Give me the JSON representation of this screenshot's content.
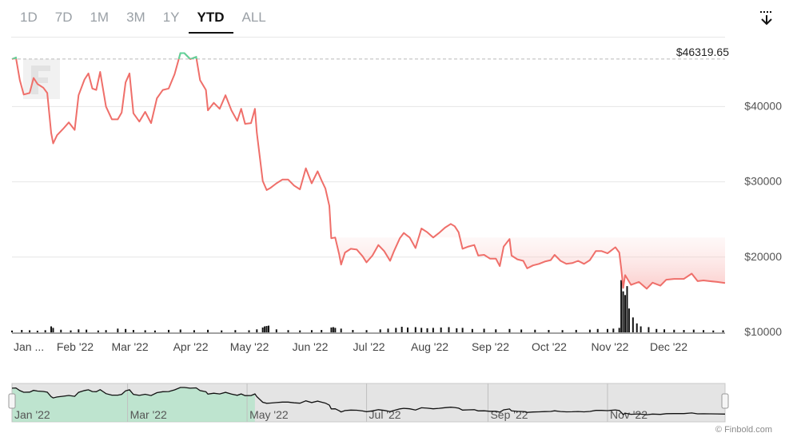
{
  "tabs": [
    {
      "label": "1D",
      "active": false
    },
    {
      "label": "7D",
      "active": false
    },
    {
      "label": "1M",
      "active": false
    },
    {
      "label": "3M",
      "active": false
    },
    {
      "label": "1Y",
      "active": false
    },
    {
      "label": "YTD",
      "active": true
    },
    {
      "label": "ALL",
      "active": false
    }
  ],
  "download_icon": "download-arrow-icon",
  "watermark_icon": "finbold-f-logo",
  "credit": "© Finbold.com",
  "colors": {
    "line_below": "#ef6f6a",
    "line_above": "#5fd39a",
    "volume": "#111111",
    "grid": "#e6e6e6",
    "navigator_bg": "#e4e4e4",
    "navigator_area": "#9ee3bd"
  },
  "chart_data": {
    "type": "line",
    "title": "",
    "ylabel": "",
    "y_ticks": [
      "$10000",
      "$20000",
      "$30000",
      "$40000"
    ],
    "ylim": [
      10000,
      48000
    ],
    "x_ticks": [
      "Jan ...",
      "Feb '22",
      "Mar '22",
      "Apr '22",
      "May '22",
      "Jun '22",
      "Jul '22",
      "Aug '22",
      "Sep '22",
      "Oct '22",
      "Nov '22",
      "Dec '22"
    ],
    "x_tick_dates": [
      "2022-01-01",
      "2022-02-01",
      "2022-03-01",
      "2022-04-01",
      "2022-05-01",
      "2022-06-01",
      "2022-07-01",
      "2022-08-01",
      "2022-09-01",
      "2022-10-01",
      "2022-11-01",
      "2022-12-01"
    ],
    "xlim": [
      "2022-01-01",
      "2022-12-31"
    ],
    "reference_label": "$46319.65",
    "reference_value": 46319.65,
    "grid": true,
    "series": [
      {
        "points": [
          [
            "2022-01-01",
            46300
          ],
          [
            "2022-01-03",
            46500
          ],
          [
            "2022-01-05",
            43500
          ],
          [
            "2022-01-07",
            41600
          ],
          [
            "2022-01-10",
            41800
          ],
          [
            "2022-01-12",
            43800
          ],
          [
            "2022-01-14",
            43000
          ],
          [
            "2022-01-17",
            42500
          ],
          [
            "2022-01-19",
            41800
          ],
          [
            "2022-01-21",
            36500
          ],
          [
            "2022-01-22",
            35100
          ],
          [
            "2022-01-24",
            36200
          ],
          [
            "2022-01-27",
            37000
          ],
          [
            "2022-01-30",
            37900
          ],
          [
            "2022-02-02",
            36900
          ],
          [
            "2022-02-04",
            41500
          ],
          [
            "2022-02-07",
            43600
          ],
          [
            "2022-02-09",
            44400
          ],
          [
            "2022-02-11",
            42400
          ],
          [
            "2022-02-13",
            42200
          ],
          [
            "2022-02-15",
            44600
          ],
          [
            "2022-02-18",
            40000
          ],
          [
            "2022-02-21",
            38300
          ],
          [
            "2022-02-24",
            38300
          ],
          [
            "2022-02-26",
            39200
          ],
          [
            "2022-02-28",
            43200
          ],
          [
            "2022-03-02",
            44400
          ],
          [
            "2022-03-04",
            39100
          ],
          [
            "2022-03-07",
            38000
          ],
          [
            "2022-03-10",
            39300
          ],
          [
            "2022-03-13",
            37800
          ],
          [
            "2022-03-16",
            41100
          ],
          [
            "2022-03-19",
            42200
          ],
          [
            "2022-03-22",
            42400
          ],
          [
            "2022-03-25",
            44300
          ],
          [
            "2022-03-28",
            47100
          ],
          [
            "2022-03-30",
            47100
          ],
          [
            "2022-04-02",
            46300
          ],
          [
            "2022-04-05",
            46600
          ],
          [
            "2022-04-07",
            43500
          ],
          [
            "2022-04-10",
            42200
          ],
          [
            "2022-04-11",
            39500
          ],
          [
            "2022-04-14",
            40500
          ],
          [
            "2022-04-17",
            39700
          ],
          [
            "2022-04-20",
            41500
          ],
          [
            "2022-04-23",
            39500
          ],
          [
            "2022-04-26",
            38100
          ],
          [
            "2022-04-28",
            39700
          ],
          [
            "2022-04-30",
            37700
          ],
          [
            "2022-05-03",
            37800
          ],
          [
            "2022-05-05",
            39700
          ],
          [
            "2022-05-06",
            36500
          ],
          [
            "2022-05-09",
            30100
          ],
          [
            "2022-05-11",
            28900
          ],
          [
            "2022-05-13",
            29200
          ],
          [
            "2022-05-16",
            29800
          ],
          [
            "2022-05-19",
            30300
          ],
          [
            "2022-05-22",
            30300
          ],
          [
            "2022-05-25",
            29500
          ],
          [
            "2022-05-28",
            29000
          ],
          [
            "2022-05-31",
            31800
          ],
          [
            "2022-06-03",
            29800
          ],
          [
            "2022-06-06",
            31400
          ],
          [
            "2022-06-08",
            30200
          ],
          [
            "2022-06-10",
            29100
          ],
          [
            "2022-06-12",
            26800
          ],
          [
            "2022-06-13",
            22500
          ],
          [
            "2022-06-15",
            22600
          ],
          [
            "2022-06-17",
            20400
          ],
          [
            "2022-06-18",
            19000
          ],
          [
            "2022-06-20",
            20600
          ],
          [
            "2022-06-23",
            21100
          ],
          [
            "2022-06-26",
            21000
          ],
          [
            "2022-06-29",
            20100
          ],
          [
            "2022-07-01",
            19300
          ],
          [
            "2022-07-04",
            20200
          ],
          [
            "2022-07-07",
            21600
          ],
          [
            "2022-07-10",
            20800
          ],
          [
            "2022-07-13",
            19500
          ],
          [
            "2022-07-15",
            20800
          ],
          [
            "2022-07-18",
            22500
          ],
          [
            "2022-07-20",
            23200
          ],
          [
            "2022-07-23",
            22600
          ],
          [
            "2022-07-26",
            21200
          ],
          [
            "2022-07-29",
            23800
          ],
          [
            "2022-08-01",
            23300
          ],
          [
            "2022-08-04",
            22600
          ],
          [
            "2022-08-07",
            23200
          ],
          [
            "2022-08-10",
            23900
          ],
          [
            "2022-08-13",
            24400
          ],
          [
            "2022-08-15",
            24100
          ],
          [
            "2022-08-17",
            23300
          ],
          [
            "2022-08-19",
            21100
          ],
          [
            "2022-08-22",
            21400
          ],
          [
            "2022-08-25",
            21600
          ],
          [
            "2022-08-27",
            20200
          ],
          [
            "2022-08-30",
            20300
          ],
          [
            "2022-09-02",
            19800
          ],
          [
            "2022-09-05",
            19800
          ],
          [
            "2022-09-07",
            18800
          ],
          [
            "2022-09-09",
            21400
          ],
          [
            "2022-09-12",
            22400
          ],
          [
            "2022-09-13",
            20200
          ],
          [
            "2022-09-16",
            19700
          ],
          [
            "2022-09-19",
            19500
          ],
          [
            "2022-09-21",
            18500
          ],
          [
            "2022-09-24",
            18900
          ],
          [
            "2022-09-27",
            19100
          ],
          [
            "2022-09-30",
            19400
          ],
          [
            "2022-10-03",
            19600
          ],
          [
            "2022-10-05",
            20300
          ],
          [
            "2022-10-08",
            19500
          ],
          [
            "2022-10-11",
            19100
          ],
          [
            "2022-10-14",
            19200
          ],
          [
            "2022-10-17",
            19500
          ],
          [
            "2022-10-20",
            19100
          ],
          [
            "2022-10-23",
            19600
          ],
          [
            "2022-10-26",
            20800
          ],
          [
            "2022-10-29",
            20800
          ],
          [
            "2022-11-01",
            20500
          ],
          [
            "2022-11-05",
            21300
          ],
          [
            "2022-11-07",
            20600
          ],
          [
            "2022-11-08",
            18500
          ],
          [
            "2022-11-09",
            15900
          ],
          [
            "2022-11-10",
            17600
          ],
          [
            "2022-11-13",
            16300
          ],
          [
            "2022-11-17",
            16700
          ],
          [
            "2022-11-21",
            15800
          ],
          [
            "2022-11-24",
            16600
          ],
          [
            "2022-11-28",
            16200
          ],
          [
            "2022-12-01",
            17000
          ],
          [
            "2022-12-05",
            17100
          ],
          [
            "2022-12-10",
            17100
          ],
          [
            "2022-12-14",
            17800
          ],
          [
            "2022-12-17",
            16800
          ],
          [
            "2022-12-20",
            16900
          ],
          [
            "2022-12-23",
            16800
          ],
          [
            "2022-12-27",
            16700
          ],
          [
            "2022-12-31",
            16550
          ]
        ]
      }
    ],
    "volume": {
      "ylim": [
        0,
        75
      ],
      "bars": [
        [
          "2022-01-01",
          2.4
        ],
        [
          "2022-01-06",
          3.2
        ],
        [
          "2022-01-10",
          2.8
        ],
        [
          "2022-01-14",
          2.2
        ],
        [
          "2022-01-18",
          2.9
        ],
        [
          "2022-01-21",
          8
        ],
        [
          "2022-01-22",
          6
        ],
        [
          "2022-01-26",
          3.5
        ],
        [
          "2022-01-31",
          2.6
        ],
        [
          "2022-02-04",
          4
        ],
        [
          "2022-02-08",
          3.6
        ],
        [
          "2022-02-14",
          2.5
        ],
        [
          "2022-02-18",
          3
        ],
        [
          "2022-02-24",
          5
        ],
        [
          "2022-02-28",
          4.5
        ],
        [
          "2022-03-04",
          3.2
        ],
        [
          "2022-03-10",
          2.8
        ],
        [
          "2022-03-15",
          2.5
        ],
        [
          "2022-03-22",
          3.3
        ],
        [
          "2022-03-28",
          3.8
        ],
        [
          "2022-04-04",
          2.9
        ],
        [
          "2022-04-11",
          3.4
        ],
        [
          "2022-04-18",
          2.6
        ],
        [
          "2022-04-25",
          3
        ],
        [
          "2022-05-02",
          2.8
        ],
        [
          "2022-05-06",
          4
        ],
        [
          "2022-05-09",
          6.5
        ],
        [
          "2022-05-10",
          8
        ],
        [
          "2022-05-11",
          8.5
        ],
        [
          "2022-05-12",
          9
        ],
        [
          "2022-05-16",
          4
        ],
        [
          "2022-05-22",
          3
        ],
        [
          "2022-05-28",
          2.6
        ],
        [
          "2022-06-03",
          3
        ],
        [
          "2022-06-08",
          3.2
        ],
        [
          "2022-06-13",
          6.5
        ],
        [
          "2022-06-14",
          7
        ],
        [
          "2022-06-15",
          6
        ],
        [
          "2022-06-18",
          5
        ],
        [
          "2022-06-24",
          3.2
        ],
        [
          "2022-07-01",
          3
        ],
        [
          "2022-07-08",
          4
        ],
        [
          "2022-07-12",
          5
        ],
        [
          "2022-07-16",
          6
        ],
        [
          "2022-07-19",
          7.5
        ],
        [
          "2022-07-22",
          6.5
        ],
        [
          "2022-07-26",
          7
        ],
        [
          "2022-07-29",
          6
        ],
        [
          "2022-08-01",
          5.5
        ],
        [
          "2022-08-04",
          6
        ],
        [
          "2022-08-08",
          6.5
        ],
        [
          "2022-08-12",
          7
        ],
        [
          "2022-08-16",
          5.5
        ],
        [
          "2022-08-19",
          6
        ],
        [
          "2022-08-24",
          4.5
        ],
        [
          "2022-08-30",
          4.8
        ],
        [
          "2022-09-05",
          4
        ],
        [
          "2022-09-12",
          4.5
        ],
        [
          "2022-09-18",
          3.8
        ],
        [
          "2022-09-25",
          3.5
        ],
        [
          "2022-10-02",
          3.2
        ],
        [
          "2022-10-09",
          3
        ],
        [
          "2022-10-16",
          3.3
        ],
        [
          "2022-10-23",
          3.6
        ],
        [
          "2022-10-27",
          4.5
        ],
        [
          "2022-11-01",
          4.5
        ],
        [
          "2022-11-04",
          5
        ],
        [
          "2022-11-07",
          6
        ],
        [
          "2022-11-08",
          70
        ],
        [
          "2022-11-09",
          55
        ],
        [
          "2022-11-10",
          50
        ],
        [
          "2022-11-11",
          62
        ],
        [
          "2022-11-12",
          32
        ],
        [
          "2022-11-14",
          20
        ],
        [
          "2022-11-16",
          12
        ],
        [
          "2022-11-18",
          8
        ],
        [
          "2022-11-22",
          7
        ],
        [
          "2022-11-26",
          4.5
        ],
        [
          "2022-11-30",
          4
        ],
        [
          "2022-12-05",
          3.5
        ],
        [
          "2022-12-10",
          3.2
        ],
        [
          "2022-12-15",
          3.6
        ],
        [
          "2022-12-20",
          3
        ],
        [
          "2022-12-25",
          2.5
        ],
        [
          "2022-12-30",
          2.7
        ]
      ]
    },
    "navigator": {
      "x_ticks": [
        "Jan '22",
        "Mar '22",
        "May '22",
        "Jul '22",
        "Sep '22",
        "Nov '22"
      ],
      "x_tick_dates": [
        "2022-01-01",
        "2022-03-01",
        "2022-05-01",
        "2022-07-01",
        "2022-09-01",
        "2022-11-01"
      ]
    }
  }
}
